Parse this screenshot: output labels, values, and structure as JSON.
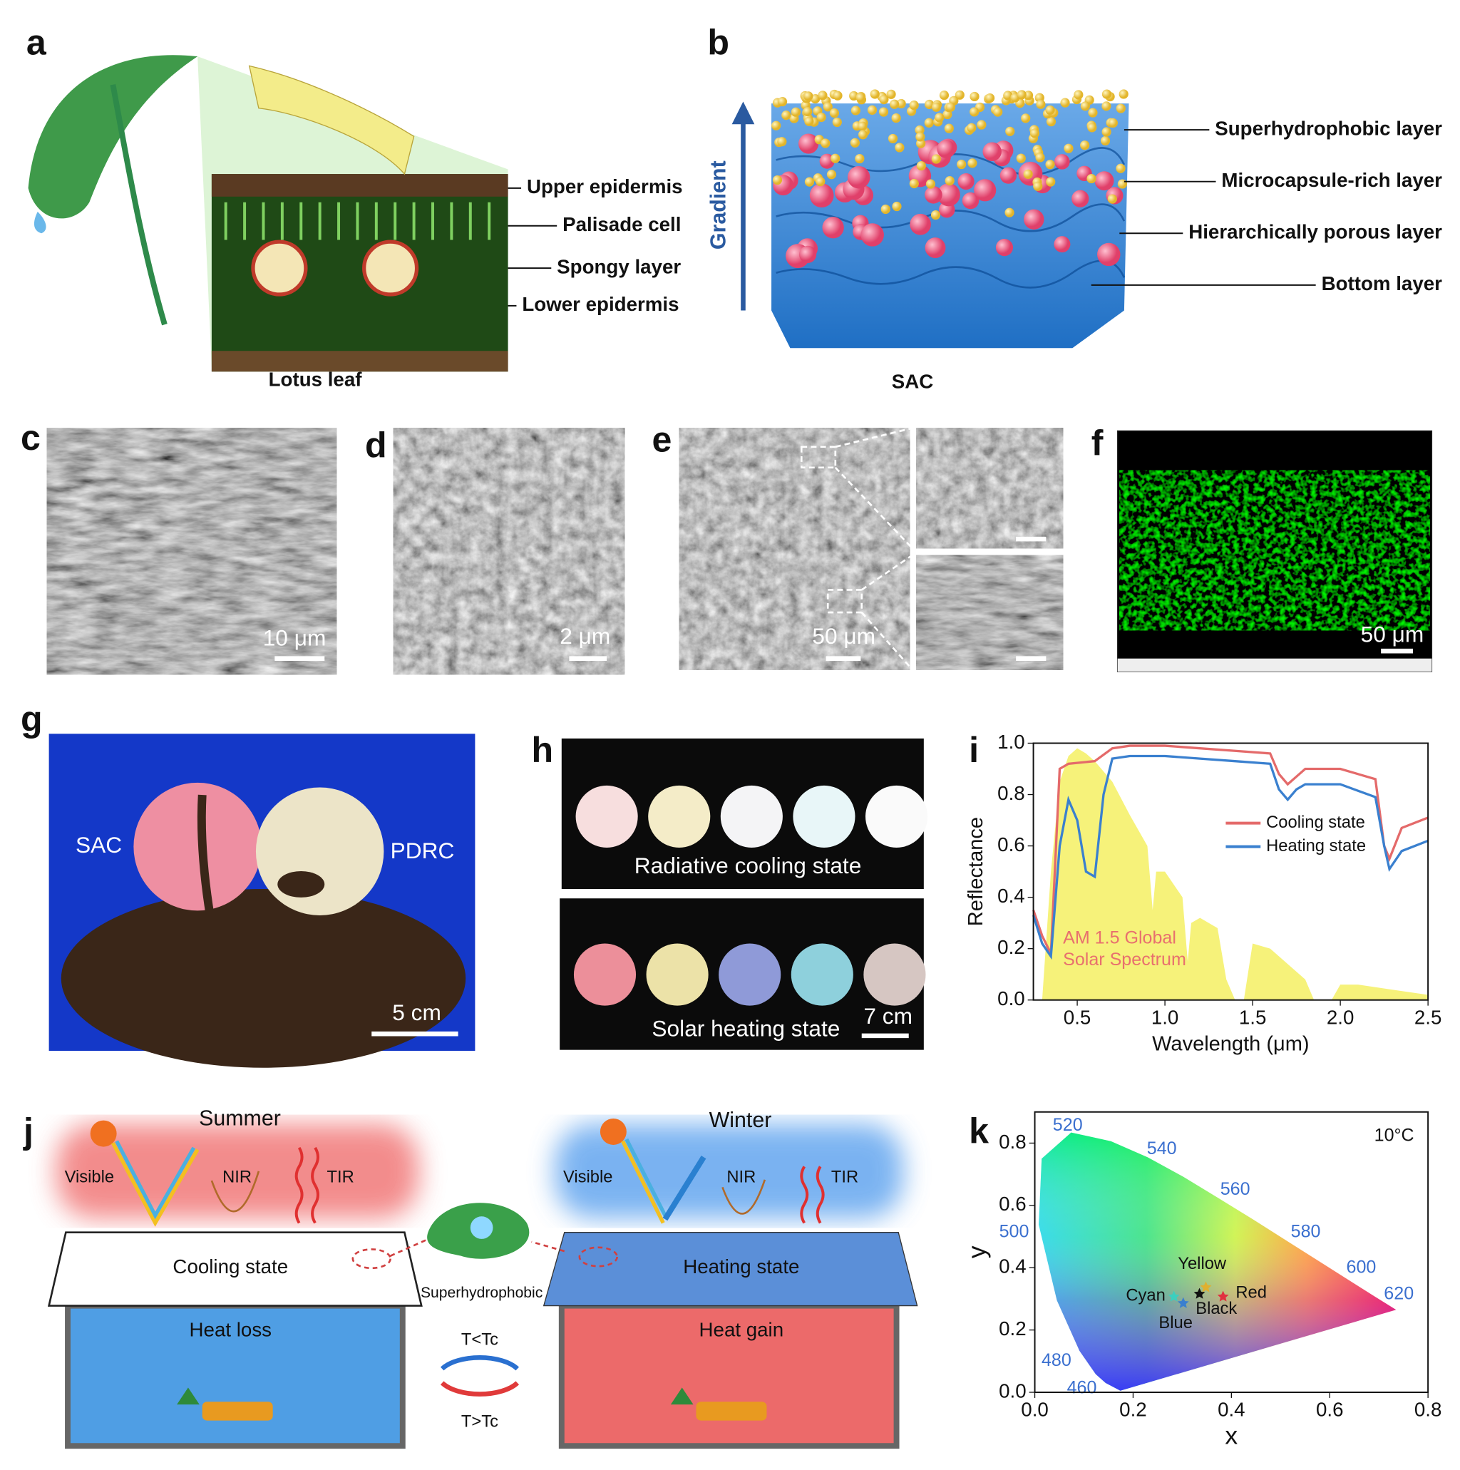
{
  "panel_labels": [
    "a",
    "b",
    "c",
    "d",
    "e",
    "f",
    "g",
    "h",
    "i",
    "j",
    "k"
  ],
  "a": {
    "labels": [
      "Upper epidermis",
      "Palisade cell",
      "Spongy layer",
      "Lower epidermis"
    ],
    "caption": "Lotus leaf"
  },
  "b": {
    "axis_label": "Gradient",
    "labels": [
      "Superhydrophobic layer",
      "Microcapsule-rich layer",
      "Hierarchically porous layer",
      "Bottom layer"
    ],
    "caption": "SAC"
  },
  "c": {
    "scale_bar": "10 μm"
  },
  "d": {
    "scale_bar": "2 μm"
  },
  "e": {
    "scale_bar": "50 μm"
  },
  "f": {
    "scale_bar": "50 μm"
  },
  "g": {
    "labels": [
      "SAC",
      "PDRC"
    ],
    "scale_bar": "5 cm"
  },
  "h": {
    "states": [
      "Radiative cooling state",
      "Solar heating state"
    ],
    "scale_bar": "7 cm"
  },
  "j": {
    "summer": {
      "title": "Summer",
      "labels": [
        "Visible",
        "NIR",
        "TIR"
      ],
      "roof": "Cooling state",
      "room": "Heat loss"
    },
    "winter": {
      "title": "Winter",
      "labels": [
        "Visible",
        "NIR",
        "TIR"
      ],
      "roof": "Heating state",
      "room": "Heat gain"
    },
    "center": {
      "label": "Superhydrophobic",
      "upper": "T<Tc",
      "lower": "T>Tc"
    }
  },
  "chart_data": [
    {
      "type": "line",
      "xlabel": "Wavelength (μm)",
      "ylabel": "Reflectance",
      "xlim": [
        0.25,
        2.5
      ],
      "ylim": [
        0,
        1
      ],
      "xticks": [
        0.5,
        {
          "value": 1,
          "label": "1.0"
        },
        1.5,
        {
          "value": 2,
          "label": "2.0"
        },
        2.5
      ],
      "yticks": [
        {
          "value": 0,
          "label": "0.0"
        },
        0.2,
        0.4,
        0.6,
        0.8,
        {
          "value": 1,
          "label": "1.0"
        }
      ],
      "series": [
        {
          "name": "Cooling state",
          "color": "#e46a6a",
          "x": [
            0.25,
            0.3,
            0.35,
            0.4,
            0.45,
            0.6,
            0.7,
            0.8,
            1.0,
            1.2,
            1.4,
            1.6,
            1.65,
            1.7,
            1.75,
            1.8,
            2.0,
            2.2,
            2.25,
            2.28,
            2.35,
            2.5
          ],
          "values": [
            0.35,
            0.25,
            0.18,
            0.9,
            0.92,
            0.93,
            0.98,
            0.99,
            0.99,
            0.98,
            0.97,
            0.96,
            0.88,
            0.84,
            0.87,
            0.9,
            0.9,
            0.86,
            0.6,
            0.55,
            0.67,
            0.71
          ]
        },
        {
          "name": "Heating state",
          "color": "#3a80cf",
          "x": [
            0.25,
            0.3,
            0.35,
            0.4,
            0.45,
            0.5,
            0.55,
            0.6,
            0.65,
            0.7,
            0.8,
            1.0,
            1.2,
            1.4,
            1.6,
            1.65,
            1.7,
            1.75,
            1.8,
            2.0,
            2.2,
            2.25,
            2.28,
            2.35,
            2.5
          ],
          "values": [
            0.33,
            0.22,
            0.17,
            0.6,
            0.78,
            0.7,
            0.5,
            0.48,
            0.8,
            0.94,
            0.95,
            0.95,
            0.94,
            0.93,
            0.92,
            0.82,
            0.78,
            0.82,
            0.84,
            0.84,
            0.79,
            0.6,
            0.51,
            0.58,
            0.62
          ]
        }
      ],
      "spectrum": {
        "label": [
          "AM 1.5 Global",
          "Solar Spectrum"
        ],
        "color": "#f6f27a",
        "label_color": "#e8706e",
        "x": [
          0.3,
          0.35,
          0.4,
          0.45,
          0.5,
          0.55,
          0.6,
          0.7,
          0.8,
          0.9,
          0.93,
          0.95,
          1.0,
          1.1,
          1.13,
          1.15,
          1.2,
          1.3,
          1.35,
          1.4,
          1.45,
          1.5,
          1.6,
          1.7,
          1.8,
          1.85,
          1.95,
          2.0,
          2.1,
          2.3,
          2.5
        ],
        "values": [
          0,
          0.5,
          0.85,
          0.95,
          0.98,
          0.96,
          0.93,
          0.85,
          0.72,
          0.6,
          0.35,
          0.5,
          0.5,
          0.4,
          0.15,
          0.3,
          0.32,
          0.28,
          0.08,
          0,
          0,
          0.22,
          0.2,
          0.14,
          0.08,
          0,
          0,
          0.06,
          0.06,
          0.04,
          0.02
        ]
      }
    },
    {
      "type": "scatter",
      "xlabel": "x",
      "ylabel": "y",
      "annotation": "10°C",
      "xlim": [
        0,
        0.8
      ],
      "ylim": [
        0,
        0.9
      ],
      "xticks": [
        {
          "value": 0,
          "label": "0.0"
        },
        0.2,
        0.4,
        0.6,
        0.8
      ],
      "yticks": [
        {
          "value": 0,
          "label": "0.0"
        },
        0.2,
        0.4,
        0.6,
        0.8
      ],
      "wavelength_labels": [
        460,
        480,
        500,
        520,
        540,
        560,
        580,
        600,
        620
      ],
      "categories": [
        "Cyan",
        "Blue",
        "Black",
        "Yellow",
        "Red"
      ],
      "colors": [
        "#3ccfbf",
        "#3a7fcf",
        "#111111",
        "#e0b030",
        "#e03040"
      ],
      "x": [
        0.283,
        0.302,
        0.335,
        0.348,
        0.383
      ],
      "values": [
        0.308,
        0.287,
        0.317,
        0.338,
        0.308
      ]
    }
  ]
}
